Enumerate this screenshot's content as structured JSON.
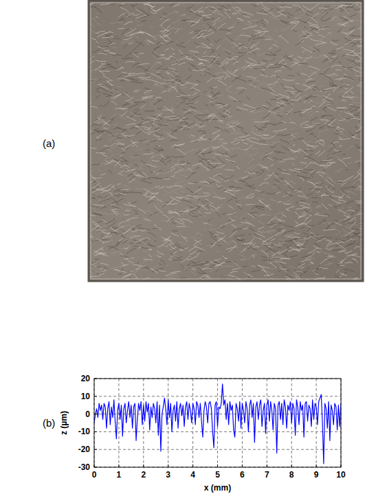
{
  "figure": {
    "panel_labels": [
      "(a)",
      "(b)"
    ]
  },
  "chart_data": {
    "type": "line",
    "x_label": "x (mm)",
    "y_label": "z (µm)",
    "color": "#0000ff",
    "line_style": "solid",
    "grid": true,
    "xlim": [
      0,
      10
    ],
    "ylim": [
      -30,
      20
    ],
    "xticks": [
      0,
      1,
      2,
      3,
      4,
      5,
      6,
      7,
      8,
      9,
      10
    ],
    "yticks": [
      -30,
      -20,
      -10,
      0,
      10,
      20
    ],
    "x": [
      0,
      0.05,
      0.1,
      0.15,
      0.2,
      0.25,
      0.3,
      0.35,
      0.4,
      0.45,
      0.5,
      0.55,
      0.6,
      0.65,
      0.7,
      0.75,
      0.8,
      0.85,
      0.9,
      0.95,
      1,
      1.05,
      1.1,
      1.15,
      1.2,
      1.25,
      1.3,
      1.35,
      1.4,
      1.45,
      1.5,
      1.55,
      1.6,
      1.65,
      1.7,
      1.75,
      1.8,
      1.85,
      1.9,
      1.95,
      2,
      2.05,
      2.1,
      2.15,
      2.2,
      2.25,
      2.3,
      2.35,
      2.4,
      2.45,
      2.5,
      2.55,
      2.6,
      2.65,
      2.7,
      2.75,
      2.8,
      2.85,
      2.9,
      2.95,
      3,
      3.05,
      3.1,
      3.15,
      3.2,
      3.25,
      3.3,
      3.35,
      3.4,
      3.45,
      3.5,
      3.55,
      3.6,
      3.65,
      3.7,
      3.75,
      3.8,
      3.85,
      3.9,
      3.95,
      4,
      4.05,
      4.1,
      4.15,
      4.2,
      4.25,
      4.3,
      4.35,
      4.4,
      4.45,
      4.5,
      4.55,
      4.6,
      4.65,
      4.7,
      4.75,
      4.8,
      4.85,
      4.9,
      4.95,
      5,
      5.05,
      5.1,
      5.15,
      5.2,
      5.25,
      5.3,
      5.35,
      5.4,
      5.45,
      5.5,
      5.55,
      5.6,
      5.65,
      5.7,
      5.75,
      5.8,
      5.85,
      5.9,
      5.95,
      6,
      6.05,
      6.1,
      6.15,
      6.2,
      6.25,
      6.3,
      6.35,
      6.4,
      6.45,
      6.5,
      6.55,
      6.6,
      6.65,
      6.7,
      6.75,
      6.8,
      6.85,
      6.9,
      6.95,
      7,
      7.05,
      7.1,
      7.15,
      7.2,
      7.25,
      7.3,
      7.35,
      7.4,
      7.45,
      7.5,
      7.55,
      7.6,
      7.65,
      7.7,
      7.75,
      7.8,
      7.85,
      7.9,
      7.95,
      8,
      8.05,
      8.1,
      8.15,
      8.2,
      8.25,
      8.3,
      8.35,
      8.4,
      8.45,
      8.5,
      8.55,
      8.6,
      8.65,
      8.7,
      8.75,
      8.8,
      8.85,
      8.9,
      8.95,
      9,
      9.05,
      9.1,
      9.15,
      9.2,
      9.25,
      9.3,
      9.35,
      9.4,
      9.45,
      9.5,
      9.55,
      9.6,
      9.65,
      9.7,
      9.75,
      9.8,
      9.85,
      9.9,
      9.95,
      10
    ],
    "values": [
      -5,
      0,
      3,
      -2,
      6,
      2,
      5,
      -3,
      6,
      4,
      -8,
      3,
      7,
      -6,
      4,
      -2,
      8,
      -4,
      -14,
      2,
      6,
      -3,
      5,
      -12.5,
      3,
      6,
      -5,
      2,
      7,
      -2,
      5,
      -8,
      4,
      6,
      -15,
      -3,
      6,
      2,
      7,
      -6,
      5,
      -4,
      7,
      1,
      6,
      -9,
      4,
      -2,
      6,
      3,
      -5,
      7,
      -12,
      5,
      -21,
      0,
      4,
      9,
      3,
      -6,
      8,
      -2,
      6,
      -10,
      2,
      5,
      -4,
      7,
      -8,
      3,
      6,
      -1,
      5,
      -7,
      4,
      7,
      -3,
      6,
      2,
      -5,
      6,
      3,
      -6,
      7,
      5,
      -2,
      6,
      -4,
      -13,
      2,
      7,
      4,
      -5,
      6,
      7,
      3,
      -10,
      -19,
      5,
      7,
      -7,
      4,
      3,
      6,
      17,
      5,
      8,
      -3,
      6,
      -6,
      7,
      2,
      5,
      -9,
      -13,
      6,
      3,
      -4,
      7,
      -8,
      6,
      2,
      -5,
      7,
      3,
      -10,
      5,
      8,
      -2,
      6,
      -16,
      4,
      7,
      -3,
      5,
      8,
      -7,
      2,
      6,
      -11,
      5,
      8,
      -4,
      7,
      2,
      -9,
      6,
      3,
      -22,
      5,
      7,
      -3,
      6,
      -6,
      8,
      4,
      -8,
      5,
      2,
      7,
      -5,
      6,
      3,
      -12,
      8,
      4,
      -6,
      7,
      2,
      5,
      -13,
      6,
      7,
      -4,
      5,
      3,
      -7,
      8,
      -3,
      6,
      4,
      -6,
      7,
      9,
      11,
      -5,
      -28,
      6,
      3,
      -8,
      7,
      -15,
      5,
      2,
      -6,
      6,
      4,
      -9,
      5,
      -7,
      6
    ]
  }
}
